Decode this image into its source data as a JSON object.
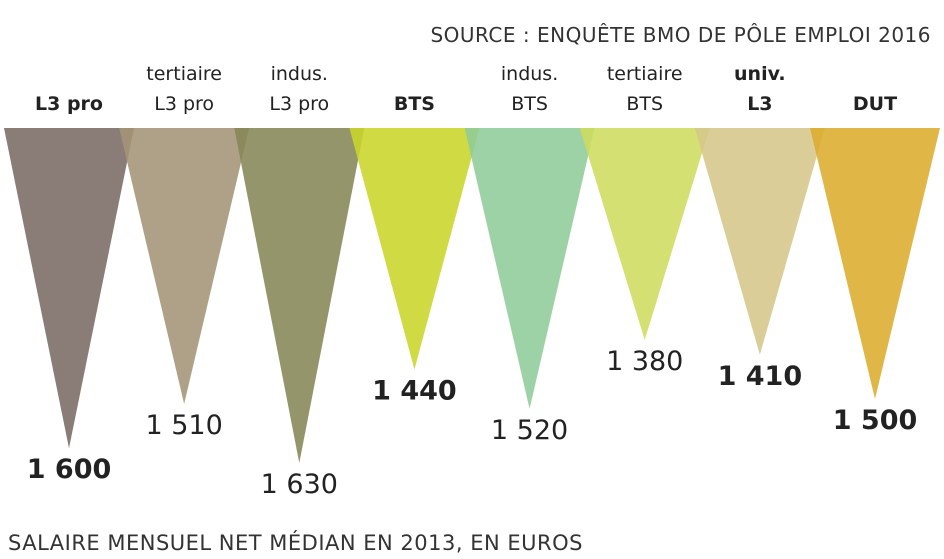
{
  "source": "SOURCE : ENQUÊTE BMO DE PÔLE EMPLOI 2016",
  "footnote": "SALAIRE MENSUEL NET MÉDIAN EN 2013, EN EUROS",
  "chart_data": {
    "type": "bar",
    "orientation": "downward-triangles",
    "unit": "euros",
    "categories": [
      {
        "line1": "",
        "line2": "L3 pro",
        "bold": true
      },
      {
        "line1": "tertiaire",
        "line2": "L3 pro",
        "bold": false
      },
      {
        "line1": "indus.",
        "line2": "L3 pro",
        "bold": false
      },
      {
        "line1": "",
        "line2": "BTS",
        "bold": true
      },
      {
        "line1": "indus.",
        "line2": "BTS",
        "bold": false
      },
      {
        "line1": "tertiaire",
        "line2": "BTS",
        "bold": false
      },
      {
        "line1": "univ.",
        "line2": "L3",
        "bold": true
      },
      {
        "line1": "",
        "line2": "DUT",
        "bold": true
      }
    ],
    "values": [
      1600,
      1510,
      1630,
      1440,
      1520,
      1380,
      1410,
      1500
    ],
    "value_labels": [
      "1 600",
      "1 510",
      "1 630",
      "1 440",
      "1 520",
      "1 380",
      "1 410",
      "1 500"
    ],
    "colors": [
      "#7a6a64",
      "#a39478",
      "#868657",
      "#c9d62a",
      "#8ecc98",
      "#cedc5e",
      "#d6c68a",
      "#dcac2c"
    ]
  }
}
